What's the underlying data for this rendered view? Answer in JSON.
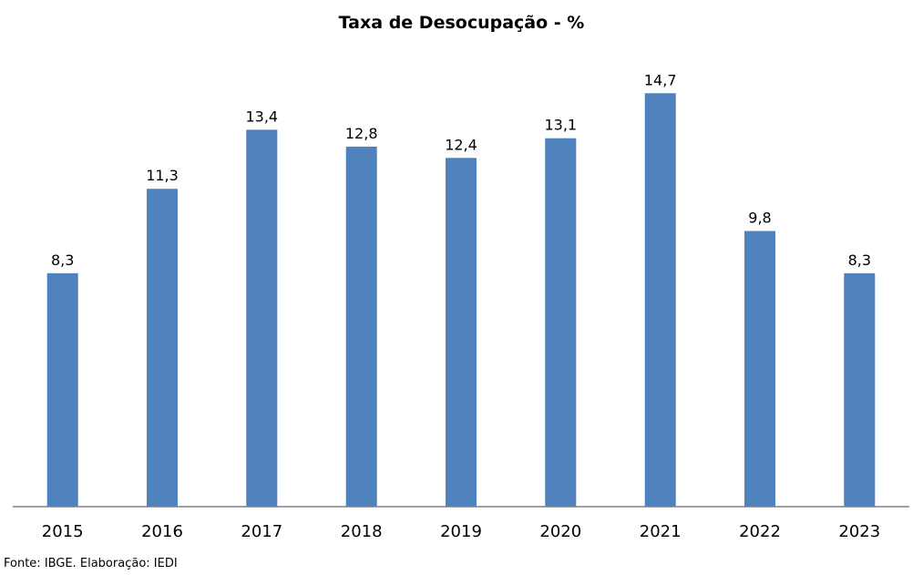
{
  "chart_data": {
    "type": "bar",
    "title": "Taxa de Desocupação - %",
    "categories": [
      "2015",
      "2016",
      "2017",
      "2018",
      "2019",
      "2020",
      "2021",
      "2022",
      "2023"
    ],
    "values": [
      8.3,
      11.3,
      13.4,
      12.8,
      12.4,
      13.1,
      14.7,
      9.8,
      8.3
    ],
    "data_labels": [
      "8,3",
      "11,3",
      "13,4",
      "12,8",
      "12,4",
      "13,1",
      "14,7",
      "9,8",
      "8,3"
    ],
    "xlabel": "",
    "ylabel": "",
    "ylim": [
      0,
      16.2
    ],
    "grid": false,
    "legend": "none",
    "bar_color": "#4F81BD",
    "axis_color": "#808080"
  },
  "source_note": "Fonte: IBGE. Elaboração: IEDI"
}
